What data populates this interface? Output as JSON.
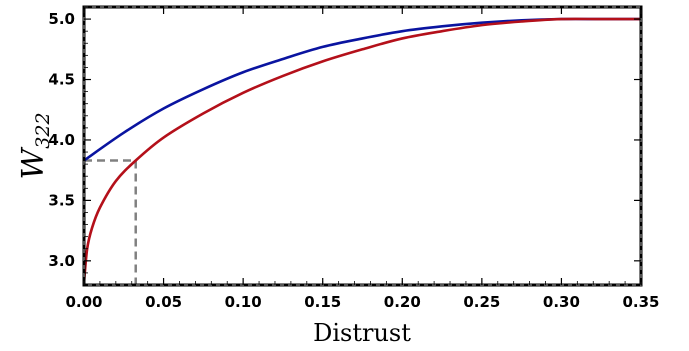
{
  "chart_data": {
    "type": "line",
    "xlabel": "Distrust",
    "ylabel_main": "W",
    "ylabel_sub": "322",
    "xlim": [
      0,
      0.35
    ],
    "ylim": [
      2.8,
      5.1
    ],
    "x_ticks": [
      "0.00",
      "0.05",
      "0.10",
      "0.15",
      "0.20",
      "0.25",
      "0.30",
      "0.35"
    ],
    "y_ticks": [
      "3.0",
      "3.5",
      "4.0",
      "4.5",
      "5.0"
    ],
    "grid": false,
    "legend": "none",
    "series": [
      {
        "color": "#0a14a0",
        "x": [
          0,
          0.025,
          0.05,
          0.075,
          0.1,
          0.125,
          0.15,
          0.175,
          0.2,
          0.225,
          0.25,
          0.275,
          0.3,
          0.325,
          0.35
        ],
        "y": [
          3.83,
          4.06,
          4.26,
          4.42,
          4.56,
          4.67,
          4.77,
          4.84,
          4.9,
          4.94,
          4.97,
          4.99,
          5.0,
          5.0,
          5.0
        ]
      },
      {
        "color": "#b4101a",
        "x": [
          0,
          0.002,
          0.005,
          0.01,
          0.02,
          0.0325,
          0.05,
          0.075,
          0.1,
          0.125,
          0.15,
          0.175,
          0.2,
          0.225,
          0.25,
          0.275,
          0.3,
          0.325,
          0.35
        ],
        "y": [
          2.82,
          3.1,
          3.27,
          3.44,
          3.66,
          3.83,
          4.02,
          4.22,
          4.39,
          4.53,
          4.65,
          4.75,
          4.84,
          4.9,
          4.95,
          4.98,
          5.0,
          5.0,
          5.0
        ]
      }
    ],
    "guides": {
      "color": "#808080",
      "style": "dashed",
      "x": 0.0325,
      "y": 3.83
    }
  }
}
